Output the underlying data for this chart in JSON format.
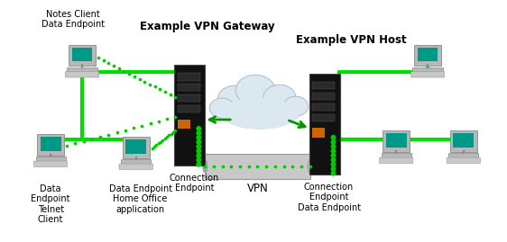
{
  "background_color": "#ffffff",
  "gateway_label": "Example VPN Gateway",
  "host_label": "Example VPN Host",
  "vpn_label": "VPN",
  "conn_ep_left": "Connection\nEndpoint",
  "conn_ep_right": "Connection\nEndpoint\nData Endpoint",
  "notes_client_label": "Notes Client\nData Endpoint",
  "data_endpoint_telnet": "Data\nEndpoint\nTelnet\nClient",
  "data_endpoint_home": "Data Endpoint\nHome Office\napplication",
  "green_solid": "#00dd00",
  "dot_color": "#00cc00",
  "cloud_color": "#dce8f0",
  "cloud_edge": "#b0c0d0"
}
